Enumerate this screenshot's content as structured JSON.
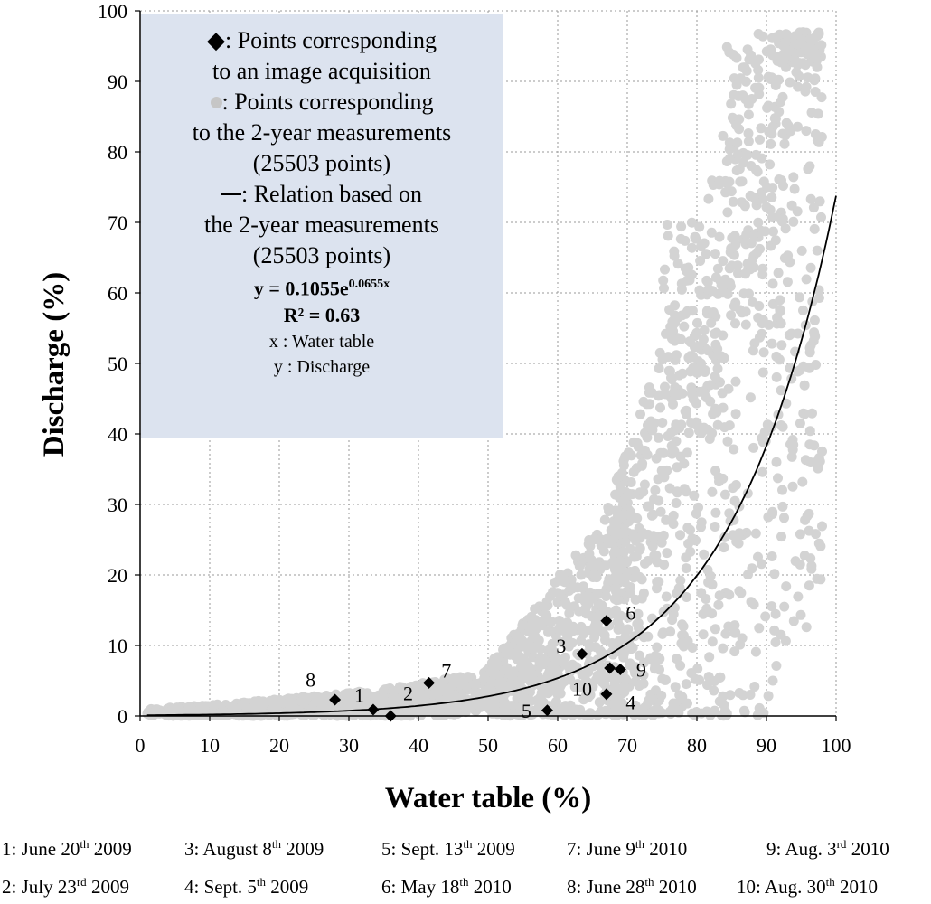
{
  "chart_data": {
    "type": "scatter",
    "xlabel": "Water table (%)",
    "ylabel": "Discharge (%)",
    "xlim": [
      0,
      100
    ],
    "ylim": [
      0,
      100
    ],
    "x_ticks": [
      "0",
      "10",
      "20",
      "30",
      "40",
      "50",
      "60",
      "70",
      "80",
      "90",
      "100"
    ],
    "y_ticks": [
      "0",
      "10",
      "20",
      "30",
      "40",
      "50",
      "60",
      "70",
      "80",
      "90",
      "100"
    ],
    "grid": true,
    "legend": {
      "placement": "top-left",
      "diamond_label": [
        ":  Points corresponding",
        "to an image acquisition"
      ],
      "dot_label": [
        ": Points corresponding",
        "to the 2-year measurements",
        "(25503 points)"
      ],
      "line_label": [
        ": Relation based on",
        "the 2-year measurements",
        "(25503 points)"
      ],
      "equation_prefix": "y = 0.1055e",
      "equation_exponent": "0.0655x",
      "r_squared": "R² = 0.63",
      "x_note": "x : Water table",
      "y_note": "y : Discharge"
    },
    "fit": {
      "a": 0.1055,
      "b": 0.0655
    },
    "image_points": [
      {
        "label": "1",
        "x": 28,
        "y": 2.3
      },
      {
        "label": "1",
        "x": 33.5,
        "y": 0.9
      },
      {
        "label": "2",
        "x": 36,
        "y": 0
      },
      {
        "label": "7",
        "x": 41.5,
        "y": 4.7
      },
      {
        "label": "5",
        "x": 58.5,
        "y": 0.8
      },
      {
        "label": "3",
        "x": 63.5,
        "y": 8.8
      },
      {
        "label": "6",
        "x": 67,
        "y": 13.5
      },
      {
        "label": "10",
        "x": 67,
        "y": 3.1
      },
      {
        "label": "9",
        "x": 67.5,
        "y": 6.8
      },
      {
        "label": "9",
        "x": 69,
        "y": 6.6
      }
    ],
    "point_labels": [
      {
        "text": "8",
        "x": 24.5,
        "y": 5.2
      },
      {
        "text": "1",
        "x": 31.5,
        "y": 3.0
      },
      {
        "text": "2",
        "x": 38.5,
        "y": 3.3
      },
      {
        "text": "7",
        "x": 44,
        "y": 6.5
      },
      {
        "text": "5",
        "x": 55.5,
        "y": 0.8
      },
      {
        "text": "3",
        "x": 60.5,
        "y": 10.0
      },
      {
        "text": "6",
        "x": 70.5,
        "y": 14.7
      },
      {
        "text": "10",
        "x": 63.5,
        "y": 3.9
      },
      {
        "text": "9",
        "x": 72,
        "y": 6.6
      },
      {
        "text": "4",
        "x": 70.5,
        "y": 2.0
      }
    ]
  },
  "footnotes": [
    {
      "num": "1: June 20",
      "sup": "th",
      "rest": " 2009"
    },
    {
      "num": "3: August 8",
      "sup": "th",
      "rest": " 2009"
    },
    {
      "num": "5: Sept. 13",
      "sup": "th",
      "rest": " 2009"
    },
    {
      "num": "7: June 9",
      "sup": "th",
      "rest": " 2010"
    },
    {
      "num": "9: Aug. 3",
      "sup": "rd",
      "rest": "  2010"
    },
    {
      "num": "2: July 23",
      "sup": "rd",
      "rest": " 2009"
    },
    {
      "num": "4: Sept. 5",
      "sup": "th",
      "rest": " 2009"
    },
    {
      "num": "6: May 18",
      "sup": "th",
      "rest": " 2010"
    },
    {
      "num": "8: June 28",
      "sup": "th",
      "rest": " 2010"
    },
    {
      "num": "10: Aug. 30",
      "sup": "th",
      "rest": " 2010"
    }
  ],
  "colors": {
    "scatter": "#d3d3d3",
    "legend_bg": "#dce3ef",
    "grid": "#9a9a9a",
    "line": "#000000"
  }
}
